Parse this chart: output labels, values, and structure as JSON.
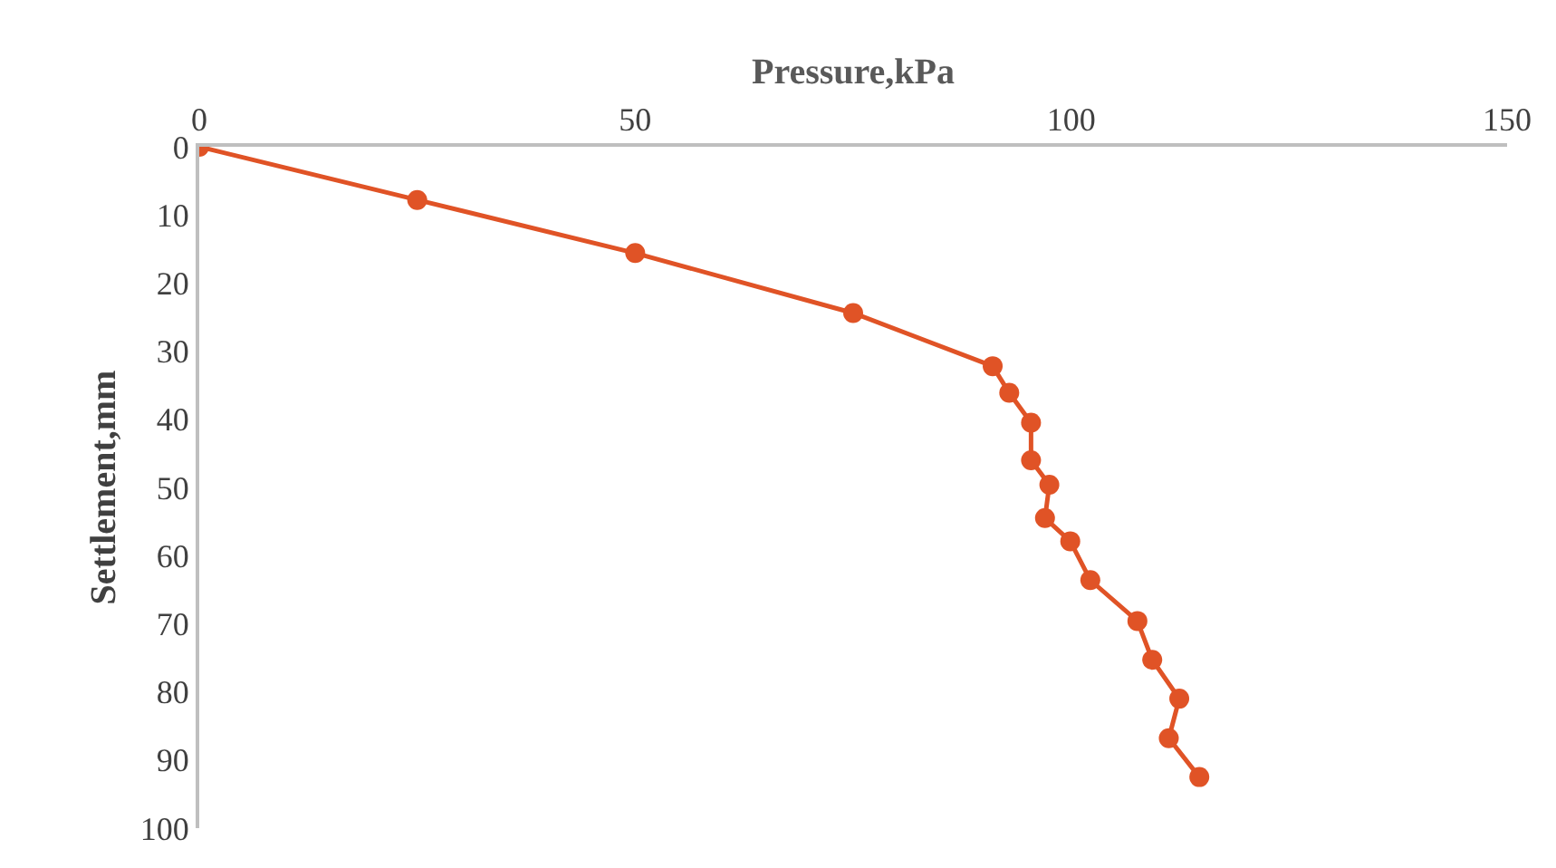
{
  "chart_data": {
    "type": "line",
    "xlabel": "Pressure,kPa",
    "ylabel": "Settlement,mm",
    "series": [
      {
        "color": "#e05326",
        "x": [
          0,
          25,
          50,
          75,
          91,
          92.9,
          95.4,
          95.4,
          97.5,
          97,
          99.9,
          102.2,
          107.6,
          109.3,
          112.4,
          111.2,
          114.7
        ],
        "values": [
          0,
          7.8,
          15.6,
          24.4,
          32.2,
          36.1,
          40.5,
          46,
          49.6,
          54.5,
          57.9,
          63.6,
          69.6,
          75.3,
          81,
          86.8,
          92.5
        ]
      }
    ],
    "xlim": [
      0,
      150
    ],
    "xticks": [
      0,
      50,
      100,
      150
    ],
    "ylim": [
      100,
      0
    ],
    "yticks": [
      0,
      10,
      20,
      30,
      40,
      50,
      60,
      70,
      80,
      90,
      100
    ],
    "marker": "circle",
    "line_style": "solid",
    "legend": false
  }
}
